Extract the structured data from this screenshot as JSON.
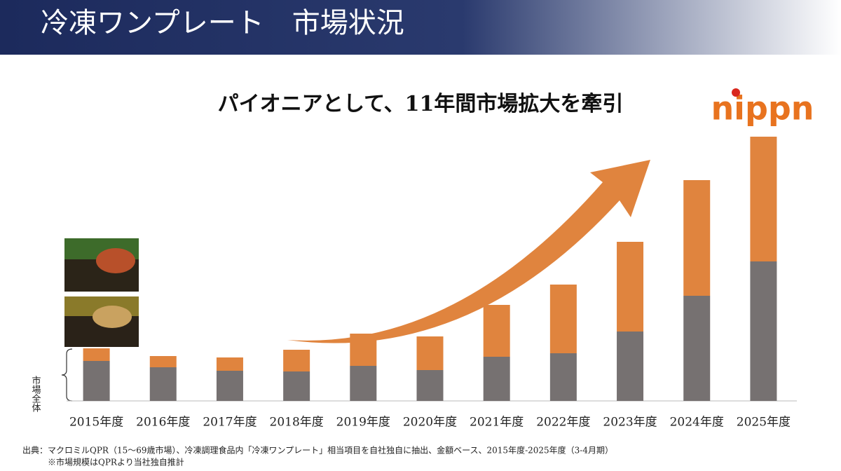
{
  "header": {
    "title": "冷凍ワンプレート　市場状況"
  },
  "logo": "nippn",
  "chart_data": {
    "type": "stacked-bar",
    "title": "パイオニアとして、11年間市場拡大を牽引",
    "annotation": "市場全体",
    "categories": [
      "2015年度",
      "2016年度",
      "2017年度",
      "2018年度",
      "2019年度",
      "2020年度",
      "2021年度",
      "2022年度",
      "2023年度",
      "2024年度",
      "2025年度"
    ],
    "series": [
      {
        "color": "#767171",
        "values": [
          57,
          48,
          43,
          42,
          50,
          44,
          63,
          68,
          99,
          150,
          199
        ]
      },
      {
        "color": "#e0843e",
        "values": [
          18,
          16,
          19,
          31,
          46,
          48,
          74,
          98,
          128,
          165,
          178
        ]
      }
    ],
    "ylim": [
      0,
      400
    ]
  },
  "footer": {
    "source": "出典：マクロミルQPR（15～69歳市場）、冷凍調理食品内「冷凍ワンプレート」相当項目を自社独自に抽出、金額ベース、2015年度-2025年度（3-4月期）",
    "note": "※市場規模はQPRより当社独自推計"
  }
}
